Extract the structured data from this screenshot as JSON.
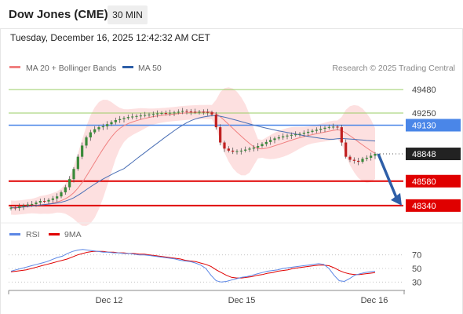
{
  "header": {
    "title": "Dow Jones (CME)",
    "timeframe": "30 MIN",
    "datetime": "Tuesday, December 16, 2025 12:42:32 AM CET"
  },
  "colors": {
    "ma20": "#f08080",
    "ma50": "#4a6fb5",
    "bollinger_fill": "#fde0e0",
    "resistance": "#9acd66",
    "pivot": "#4a86e8",
    "support": "#e00000",
    "candle_up": "#3a8a3a",
    "candle_down": "#c02020",
    "arrow": "#2e5fa8",
    "rsi": "#5b86e5",
    "rsi_ma": "#e00000",
    "last_price_bg": "#222222"
  },
  "chart_data": [
    {
      "type": "candlestick",
      "title": "Dow Jones (CME)",
      "legend": [
        {
          "name": "MA 20 + Bollinger Bands",
          "color": "#f08080"
        },
        {
          "name": "MA 50",
          "color": "#2e5fa8"
        }
      ],
      "credit": "Research © 2025 Trading Central",
      "ylim": [
        48200,
        49620
      ],
      "x_tick_labels": [
        "Dec 12",
        "Dec 15",
        "Dec 16"
      ],
      "levels": [
        {
          "label": "49480",
          "value": 49480,
          "kind": "resistance"
        },
        {
          "label": "49250",
          "value": 49250,
          "kind": "resistance"
        },
        {
          "label": "49130",
          "value": 49130,
          "kind": "pivot"
        },
        {
          "label": "48848",
          "value": 48848,
          "kind": "last"
        },
        {
          "label": "48580",
          "value": 48580,
          "kind": "support"
        },
        {
          "label": "48340",
          "value": 48340,
          "kind": "support"
        }
      ],
      "close_path": [
        48320,
        48315,
        48330,
        48340,
        48350,
        48355,
        48370,
        48385,
        48380,
        48395,
        48410,
        48430,
        48470,
        48520,
        48600,
        48700,
        48820,
        48930,
        49010,
        49060,
        49090,
        49110,
        49120,
        49140,
        49160,
        49180,
        49190,
        49200,
        49210,
        49215,
        49220,
        49225,
        49230,
        49235,
        49240,
        49245,
        49250,
        49248,
        49252,
        49255,
        49262,
        49270,
        49265,
        49262,
        49258,
        49262,
        49260,
        49256,
        49235,
        49110,
        48960,
        48900,
        48880,
        48870,
        48875,
        48880,
        48890,
        48900,
        48910,
        48925,
        48945,
        48965,
        48985,
        49000,
        49010,
        49020,
        49028,
        49035,
        49040,
        49045,
        49055,
        49065,
        49075,
        49085,
        49095,
        49105,
        49112,
        49115,
        49110,
        48960,
        48820,
        48790,
        48780,
        48770,
        48800,
        48810,
        48830,
        48848
      ],
      "projection": {
        "from": 48848,
        "to": 48340
      }
    },
    {
      "type": "line",
      "title": "RSI",
      "legend": [
        {
          "name": "RSI",
          "color": "#5b86e5"
        },
        {
          "name": "9MA",
          "color": "#e00000"
        }
      ],
      "ylim": [
        20,
        80
      ],
      "y_ticks": [
        70,
        50,
        30
      ],
      "rsi": [
        46,
        48,
        50,
        52,
        54,
        56,
        58,
        60,
        63,
        66,
        68,
        72,
        75,
        77,
        78,
        77,
        76,
        75,
        74,
        74,
        73,
        73,
        72,
        72,
        71,
        70,
        70,
        69,
        68,
        67,
        66,
        65,
        64,
        62,
        61,
        60,
        58,
        55,
        50,
        40,
        32,
        30,
        31,
        33,
        35,
        37,
        38,
        40,
        42,
        44,
        46,
        47,
        48,
        50,
        51,
        52,
        53,
        54,
        55,
        56,
        57,
        56,
        50,
        40,
        32,
        31,
        35,
        40,
        42,
        44,
        45,
        46
      ],
      "rsi_ma": [
        45,
        46,
        47,
        48,
        50,
        52,
        54,
        56,
        58,
        60,
        62,
        64,
        67,
        70,
        72,
        74,
        75,
        75,
        75,
        74,
        74,
        73,
        73,
        72,
        72,
        71,
        71,
        70,
        69,
        68,
        67,
        66,
        65,
        64,
        62,
        61,
        60,
        58,
        56,
        53,
        48,
        44,
        40,
        37,
        36,
        36,
        37,
        38,
        40,
        41,
        43,
        44,
        46,
        47,
        48,
        50,
        51,
        52,
        53,
        54,
        55,
        55,
        54,
        51,
        47,
        44,
        42,
        41,
        41,
        42,
        43,
        44
      ]
    }
  ]
}
